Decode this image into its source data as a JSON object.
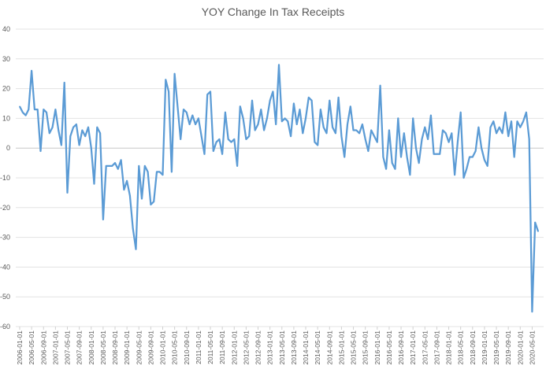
{
  "chart_data": {
    "type": "line",
    "title": "YOY Change In Tax Receipts",
    "xlabel": "",
    "ylabel": "",
    "ylim": [
      -60,
      40
    ],
    "yticks": [
      40,
      30,
      20,
      10,
      0,
      -10,
      -20,
      -30,
      -40,
      -50,
      -60
    ],
    "grid": "horizontal",
    "legend": "none",
    "x_tick_labels": [
      "2006-01-01",
      "2006-05-01",
      "2006-09-01",
      "2007-01-01",
      "2007-05-01",
      "2007-09-01",
      "2008-01-01",
      "2008-05-01",
      "2008-09-01",
      "2009-01-01",
      "2009-05-01",
      "2009-09-01",
      "2010-01-01",
      "2010-05-01",
      "2010-09-01",
      "2011-01-01",
      "2011-05-01",
      "2011-09-01",
      "2012-01-01",
      "2012-05-01",
      "2012-09-01",
      "2013-01-01",
      "2013-05-01",
      "2013-09-01",
      "2014-01-01",
      "2014-05-01",
      "2014-09-01",
      "2015-01-01",
      "2015-05-01",
      "2015-09-01",
      "2016-01-01",
      "2016-05-01",
      "2016-09-01",
      "2017-01-01",
      "2017-05-01",
      "2017-09-01",
      "2018-01-01",
      "2018-05-01",
      "2018-09-01",
      "2019-01-01",
      "2019-05-01",
      "2019-09-01",
      "2020-01-01",
      "2020-05-01"
    ],
    "series": [
      {
        "color": "#5b9bd5",
        "values": [
          14,
          12,
          11,
          13,
          26,
          13,
          13,
          -1,
          13,
          12,
          5,
          7,
          13,
          6,
          1,
          22,
          -15,
          4,
          7,
          8,
          1,
          6,
          4,
          7,
          0,
          -12,
          7,
          5,
          -24,
          -6,
          -6,
          -6,
          -5,
          -7,
          -4,
          -14,
          -11,
          -16,
          -27,
          -34,
          -6,
          -17,
          -6,
          -8,
          -19,
          -18,
          -8,
          -8,
          -9,
          23,
          19,
          -8,
          25,
          14,
          3,
          13,
          12,
          8,
          11,
          8,
          10,
          4,
          -2,
          18,
          19,
          -1,
          2,
          3,
          -2,
          12,
          3,
          2,
          3,
          -6,
          14,
          10,
          3,
          4,
          16,
          6,
          8,
          13,
          6,
          10,
          16,
          19,
          8,
          28,
          9,
          10,
          9,
          4,
          15,
          8,
          13,
          5,
          10,
          17,
          16,
          2,
          1,
          13,
          7,
          5,
          16,
          7,
          5,
          17,
          4,
          -3,
          8,
          14,
          6,
          6,
          5,
          8,
          3,
          -1,
          6,
          4,
          2,
          21,
          -3,
          -7,
          6,
          -5,
          -7,
          10,
          -3,
          5,
          -3,
          -9,
          10,
          0,
          -5,
          3,
          7,
          3,
          11,
          -2,
          -2,
          -2,
          6,
          5,
          2,
          5,
          -9,
          2,
          12,
          -10,
          -7,
          -3,
          -3,
          -1,
          7,
          0,
          -4,
          -6,
          7,
          9,
          5,
          7,
          5,
          12,
          4,
          9,
          -3,
          9,
          7,
          9,
          12,
          3,
          -55,
          -25,
          -28
        ]
      }
    ]
  }
}
